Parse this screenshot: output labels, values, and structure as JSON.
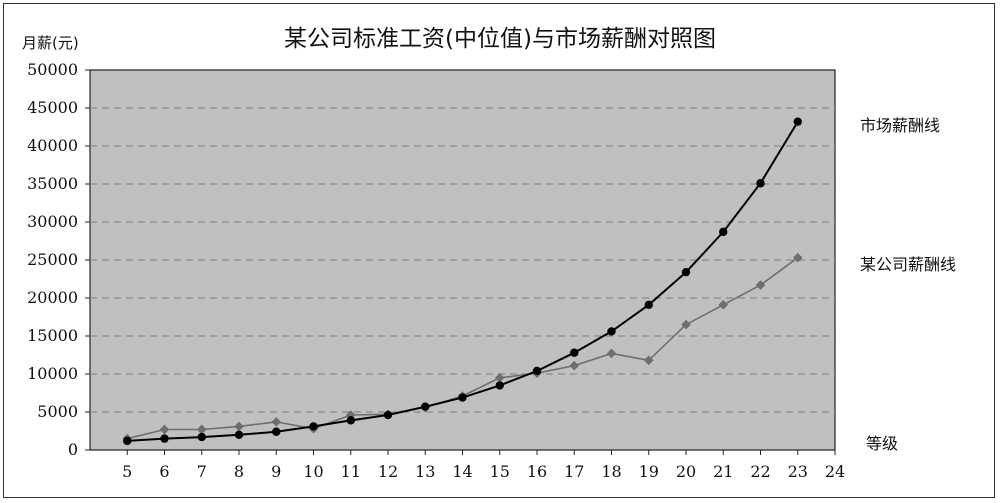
{
  "chart_data": {
    "type": "line",
    "title": "某公司标准工资(中位值)与市场薪酬对照图",
    "ylabel": "月薪(元)",
    "xlabel": "等级",
    "xlim": [
      4,
      24
    ],
    "ylim": [
      0,
      50000
    ],
    "y_ticks": [
      0,
      5000,
      10000,
      15000,
      20000,
      25000,
      30000,
      35000,
      40000,
      45000,
      50000
    ],
    "x_ticks": [
      5,
      6,
      7,
      8,
      9,
      10,
      11,
      12,
      13,
      14,
      15,
      16,
      17,
      18,
      19,
      20,
      21,
      22,
      23,
      24
    ],
    "grid": true,
    "legend": "right",
    "series": [
      {
        "name": "市场薪酬线",
        "color": "#000000",
        "marker": "circle",
        "x": [
          5,
          6,
          7,
          8,
          9,
          10,
          11,
          12,
          13,
          14,
          15,
          16,
          17,
          18,
          19,
          20,
          21,
          22,
          23
        ],
        "values": [
          1200,
          1500,
          1700,
          2000,
          2400,
          3100,
          3900,
          4600,
          5700,
          6900,
          8500,
          10400,
          12800,
          15600,
          19100,
          23400,
          28700,
          35100,
          43200
        ]
      },
      {
        "name": "某公司薪酬线",
        "color": "#6e6e6e",
        "marker": "diamond",
        "x": [
          5,
          6,
          7,
          8,
          9,
          10,
          11,
          12,
          13,
          14,
          15,
          16,
          17,
          18,
          19,
          20,
          21,
          22,
          23
        ],
        "values": [
          1500,
          2700,
          2700,
          3100,
          3700,
          2800,
          4600,
          4700,
          5600,
          7100,
          9500,
          10100,
          11100,
          12700,
          11800,
          16500,
          19100,
          21700,
          25300
        ]
      }
    ]
  }
}
